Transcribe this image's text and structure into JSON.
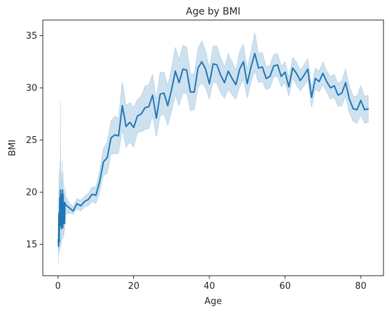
{
  "chart_data": {
    "type": "line",
    "title": "Age by BMI",
    "xlabel": "Age",
    "ylabel": "BMI",
    "xlim": [
      -4,
      86
    ],
    "ylim": [
      12,
      36.5
    ],
    "xticks": [
      0,
      20,
      40,
      60,
      80
    ],
    "yticks": [
      15,
      20,
      25,
      30,
      35
    ],
    "grid": false,
    "legend": "none",
    "colors": {
      "line": "#1f77b4",
      "band": "#1f77b4"
    },
    "series": [
      {
        "x": [
          0.08,
          0.16,
          0.24,
          0.32,
          0.4,
          0.48,
          0.56,
          0.64,
          0.72,
          0.8,
          0.88,
          0.96,
          1.04,
          1.12,
          1.2,
          1.28,
          1.36,
          1.44,
          1.52,
          1.6,
          1.68,
          1.76,
          1.84,
          2,
          3,
          4,
          5,
          6,
          7,
          8,
          9,
          10,
          11,
          12,
          13,
          14,
          15,
          16,
          17,
          18,
          19,
          20,
          21,
          22,
          23,
          24,
          25,
          26,
          27,
          28,
          29,
          30,
          31,
          32,
          33,
          34,
          35,
          36,
          37,
          38,
          39,
          40,
          41,
          42,
          43,
          44,
          45,
          46,
          47,
          48,
          49,
          50,
          51,
          52,
          53,
          54,
          55,
          56,
          57,
          58,
          59,
          60,
          61,
          62,
          63,
          64,
          65,
          66,
          67,
          68,
          69,
          70,
          71,
          72,
          73,
          74,
          75,
          76,
          77,
          78,
          79,
          80,
          81,
          82
        ],
        "y": [
          15.5,
          14.8,
          18.0,
          15.2,
          17.5,
          19.5,
          16.8,
          20.2,
          17.0,
          19.8,
          16.5,
          18.5,
          19.0,
          17.5,
          20.2,
          16.6,
          19.8,
          17.0,
          19.0,
          17.2,
          18.5,
          17.0,
          19.0,
          18.8,
          18.5,
          18.2,
          18.9,
          18.7,
          19.1,
          19.3,
          19.8,
          19.7,
          21.0,
          22.9,
          23.3,
          25.2,
          25.5,
          25.4,
          28.3,
          26.3,
          26.7,
          26.2,
          27.3,
          27.5,
          28.1,
          28.2,
          29.3,
          27.1,
          29.4,
          29.5,
          28.3,
          29.8,
          31.6,
          30.5,
          31.8,
          31.7,
          29.6,
          29.6,
          31.9,
          32.5,
          31.8,
          30.4,
          32.3,
          32.2,
          31.2,
          30.5,
          31.6,
          30.9,
          30.3,
          31.8,
          32.5,
          30.4,
          32.0,
          33.3,
          31.9,
          32.0,
          30.9,
          31.1,
          32.1,
          32.2,
          31.1,
          31.5,
          30.1,
          31.9,
          31.4,
          30.7,
          31.2,
          31.8,
          29.1,
          30.9,
          30.6,
          31.4,
          30.6,
          30.0,
          30.2,
          29.3,
          29.5,
          30.5,
          28.9,
          28.0,
          27.9,
          28.8,
          27.9,
          28.0
        ],
        "lower": [
          13.0,
          14.0,
          14.5,
          14.2,
          15.0,
          15.5,
          14.3,
          16.0,
          14.8,
          15.5,
          14.8,
          15.5,
          15.5,
          15.5,
          16.5,
          15.8,
          16.0,
          15.5,
          16.0,
          16.0,
          16.5,
          16.3,
          16.8,
          17.9,
          18.0,
          17.9,
          18.4,
          18.2,
          18.6,
          18.7,
          19.1,
          18.9,
          20.0,
          21.6,
          21.8,
          23.6,
          23.7,
          23.7,
          26.0,
          24.3,
          24.8,
          24.3,
          25.7,
          25.8,
          26.0,
          26.1,
          27.3,
          25.3,
          27.3,
          27.5,
          26.4,
          27.7,
          29.3,
          28.3,
          29.5,
          29.5,
          27.8,
          27.9,
          30.0,
          30.5,
          30.0,
          28.9,
          30.6,
          30.4,
          29.5,
          29.0,
          29.9,
          29.3,
          28.9,
          30.1,
          30.8,
          29.0,
          30.5,
          31.6,
          30.5,
          30.6,
          29.8,
          30.0,
          31.0,
          31.1,
          30.1,
          30.5,
          29.2,
          30.9,
          30.3,
          29.7,
          30.2,
          30.8,
          28.1,
          29.9,
          29.6,
          30.3,
          29.6,
          28.9,
          29.1,
          28.2,
          28.3,
          29.2,
          27.6,
          26.8,
          26.6,
          27.4,
          26.6,
          26.7
        ],
        "upper": [
          18.0,
          16.0,
          22.0,
          16.5,
          20.5,
          23.0,
          19.5,
          28.7,
          19.5,
          23.0,
          18.3,
          21.5,
          22.0,
          20.0,
          23.0,
          17.5,
          22.0,
          18.8,
          21.0,
          18.5,
          20.0,
          18.0,
          20.5,
          19.6,
          19.0,
          18.6,
          19.4,
          19.2,
          19.6,
          19.9,
          20.5,
          20.5,
          22.0,
          24.2,
          24.8,
          26.8,
          27.3,
          27.1,
          30.6,
          28.3,
          28.6,
          28.1,
          28.9,
          29.2,
          30.2,
          30.3,
          31.3,
          28.9,
          31.5,
          31.5,
          30.2,
          31.9,
          33.9,
          32.7,
          34.1,
          33.9,
          31.4,
          31.3,
          33.8,
          34.5,
          33.6,
          31.9,
          34.0,
          34.0,
          32.9,
          32.0,
          33.3,
          32.5,
          31.7,
          33.5,
          34.2,
          31.8,
          33.5,
          35.3,
          33.3,
          33.4,
          32.0,
          32.2,
          33.2,
          33.3,
          32.1,
          32.5,
          31.0,
          32.9,
          32.5,
          31.7,
          32.2,
          32.8,
          30.1,
          31.9,
          31.6,
          32.5,
          31.6,
          31.1,
          31.3,
          30.4,
          30.7,
          31.8,
          30.2,
          29.2,
          29.2,
          30.2,
          29.2,
          29.3
        ]
      }
    ]
  }
}
